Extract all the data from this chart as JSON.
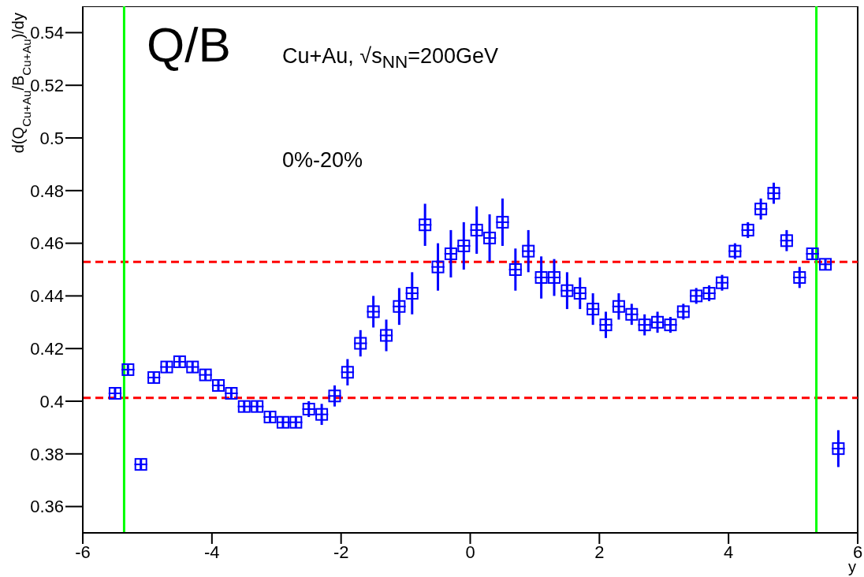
{
  "chart_data": {
    "type": "scatter",
    "xlabel": "y",
    "ylabel": "d(Q$_{Cu+Au}$/B$_{Cu+Au}$)/dy",
    "annotations": [
      "Q/B",
      "Cu+Au, √s$_{NN}$=200GeV",
      "0%-20%"
    ],
    "x": [
      -5.5,
      -5.3,
      -5.1,
      -4.9,
      -4.7,
      -4.5,
      -4.3,
      -4.1,
      -3.9,
      -3.7,
      -3.5,
      -3.3,
      -3.1,
      -2.9,
      -2.7,
      -2.5,
      -2.3,
      -2.1,
      -1.9,
      -1.7,
      -1.5,
      -1.3,
      -1.1,
      -0.9,
      -0.7,
      -0.5,
      -0.3,
      -0.1,
      0.1,
      0.3,
      0.5,
      0.7,
      0.9,
      1.1,
      1.3,
      1.5,
      1.7,
      1.9,
      2.1,
      2.3,
      2.5,
      2.7,
      2.9,
      3.1,
      3.3,
      3.5,
      3.7,
      3.9,
      4.1,
      4.3,
      4.5,
      4.7,
      4.9,
      5.1,
      5.3,
      5.5,
      5.7
    ],
    "series": [
      {
        "color": "#0000ff",
        "values": [
          0.403,
          0.412,
          0.376,
          0.409,
          0.413,
          0.415,
          0.413,
          0.41,
          0.406,
          0.403,
          0.398,
          0.398,
          0.394,
          0.392,
          0.392,
          0.397,
          0.395,
          0.402,
          0.411,
          0.422,
          0.434,
          0.425,
          0.436,
          0.441,
          0.467,
          0.451,
          0.456,
          0.459,
          0.465,
          0.462,
          0.468,
          0.45,
          0.457,
          0.447,
          0.447,
          0.442,
          0.441,
          0.435,
          0.429,
          0.436,
          0.433,
          0.429,
          0.43,
          0.429,
          0.434,
          0.44,
          0.441,
          0.445,
          0.457,
          0.465,
          0.473,
          0.479,
          0.461,
          0.447,
          0.456,
          0.452,
          0.382
        ],
        "errors": [
          0.002,
          0.002,
          0.002,
          0.002,
          0.002,
          0.002,
          0.002,
          0.002,
          0.002,
          0.002,
          0.002,
          0.002,
          0.002,
          0.002,
          0.002,
          0.003,
          0.004,
          0.004,
          0.005,
          0.005,
          0.006,
          0.006,
          0.007,
          0.008,
          0.008,
          0.009,
          0.009,
          0.009,
          0.009,
          0.009,
          0.009,
          0.008,
          0.008,
          0.008,
          0.007,
          0.007,
          0.006,
          0.006,
          0.005,
          0.005,
          0.004,
          0.004,
          0.004,
          0.003,
          0.003,
          0.003,
          0.003,
          0.003,
          0.003,
          0.003,
          0.004,
          0.004,
          0.004,
          0.004,
          0.002,
          0.002,
          0.007
        ],
        "xerrors": [
          0.1,
          0.1,
          0.1,
          0.1,
          0.1,
          0.1,
          0.1,
          0.1,
          0.1,
          0.1,
          0.1,
          0.1,
          0.1,
          0.1,
          0.1,
          0.1,
          0.1,
          0.1,
          0.1,
          0.1,
          0.1,
          0.1,
          0.1,
          0.1,
          0.1,
          0.1,
          0.1,
          0.1,
          0.1,
          0.1,
          0.1,
          0.1,
          0.1,
          0.1,
          0.1,
          0.1,
          0.1,
          0.1,
          0.1,
          0.1,
          0.1,
          0.1,
          0.1,
          0.1,
          0.1,
          0.1,
          0.1,
          0.1,
          0.1,
          0.1,
          0.1,
          0.1,
          0.1,
          0.1,
          0.1,
          0.1,
          0.1
        ]
      }
    ],
    "marker": "square",
    "xlim": [
      -6,
      6
    ],
    "xticks": [
      -6,
      -4,
      -2,
      0,
      2,
      4,
      6
    ],
    "ylim": [
      0.35,
      0.55
    ],
    "yticks": [
      0.36,
      0.38,
      0.4,
      0.42,
      0.44,
      0.46,
      0.48,
      0.5,
      0.52,
      0.54
    ],
    "ref_lines": [
      {
        "axis": "y",
        "value": 0.4013,
        "color": "#ff0000",
        "line_style": "dashed"
      },
      {
        "axis": "y",
        "value": 0.4529,
        "color": "#ff0000",
        "line_style": "dashed"
      },
      {
        "axis": "x",
        "value": -5.36,
        "color": "#00ff00",
        "line_style": "solid"
      },
      {
        "axis": "x",
        "value": 5.36,
        "color": "#00ff00",
        "line_style": "solid"
      }
    ],
    "grid": false
  }
}
